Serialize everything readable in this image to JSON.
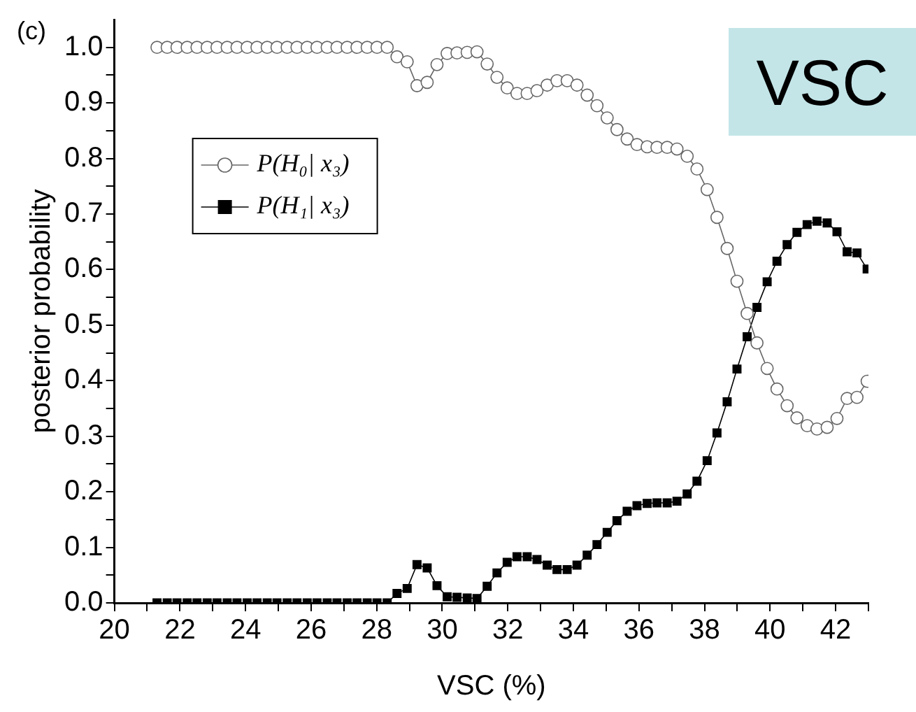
{
  "chart_data": {
    "type": "line",
    "xlabel": "VSC (%)",
    "ylabel": "posterior probability",
    "annotations": [
      "(c)",
      "VSC"
    ],
    "x": [
      21.3,
      21.61,
      21.91,
      22.22,
      22.52,
      22.83,
      23.13,
      23.44,
      23.74,
      24.05,
      24.35,
      24.66,
      24.96,
      25.27,
      25.57,
      25.88,
      26.18,
      26.49,
      26.79,
      27.1,
      27.4,
      27.71,
      28.01,
      28.32,
      28.62,
      28.93,
      29.23,
      29.54,
      29.84,
      30.15,
      30.45,
      30.76,
      31.06,
      31.37,
      31.67,
      31.98,
      32.28,
      32.59,
      32.89,
      33.2,
      33.5,
      33.81,
      34.11,
      34.42,
      34.72,
      35.03,
      35.33,
      35.64,
      35.94,
      36.25,
      36.55,
      36.86,
      37.16,
      37.47,
      37.77,
      38.08,
      38.38,
      38.69,
      38.99,
      39.3,
      39.6,
      39.91,
      40.21,
      40.52,
      40.82,
      41.13,
      41.43,
      41.74,
      42.04,
      42.35,
      42.65,
      42.96
    ],
    "series": [
      {
        "name": "P(H₀| x₃)",
        "color": "#666666",
        "marker": "circle",
        "values": [
          1,
          1,
          1,
          1,
          1,
          1,
          1,
          1,
          1,
          1,
          1,
          1,
          1,
          1,
          1,
          1,
          1,
          1,
          1,
          1,
          1,
          1,
          1,
          1,
          0.983,
          0.974,
          0.931,
          0.937,
          0.969,
          0.989,
          0.99,
          0.991,
          0.992,
          0.97,
          0.946,
          0.927,
          0.917,
          0.917,
          0.922,
          0.932,
          0.94,
          0.94,
          0.932,
          0.914,
          0.895,
          0.873,
          0.852,
          0.835,
          0.825,
          0.821,
          0.82,
          0.82,
          0.817,
          0.804,
          0.781,
          0.744,
          0.694,
          0.638,
          0.579,
          0.521,
          0.468,
          0.422,
          0.385,
          0.355,
          0.333,
          0.319,
          0.313,
          0.316,
          0.332,
          0.368,
          0.37,
          0.399
        ]
      },
      {
        "name": "P(H₁| x₃)",
        "color": "#000000",
        "marker": "square",
        "values": [
          0,
          0,
          0,
          0,
          0,
          0,
          0,
          0,
          0,
          0,
          0,
          0,
          0,
          0,
          0,
          0,
          0,
          0,
          0,
          0,
          0,
          0,
          0,
          0,
          0.017,
          0.026,
          0.069,
          0.063,
          0.031,
          0.011,
          0.01,
          0.009,
          0.008,
          0.03,
          0.054,
          0.073,
          0.083,
          0.083,
          0.078,
          0.068,
          0.06,
          0.06,
          0.068,
          0.086,
          0.105,
          0.127,
          0.148,
          0.165,
          0.175,
          0.179,
          0.18,
          0.18,
          0.183,
          0.196,
          0.219,
          0.256,
          0.306,
          0.362,
          0.421,
          0.479,
          0.532,
          0.578,
          0.615,
          0.645,
          0.667,
          0.681,
          0.687,
          0.684,
          0.668,
          0.632,
          0.63,
          0.601
        ]
      }
    ],
    "xlim": [
      20,
      43
    ],
    "xticks": [
      20,
      {
        "value": 21,
        "label": null
      },
      22,
      {
        "value": 23,
        "label": null
      },
      24,
      {
        "value": 25,
        "label": null
      },
      26,
      {
        "value": 27,
        "label": null
      },
      28,
      {
        "value": 29,
        "label": null
      },
      30,
      {
        "value": 31,
        "label": null
      },
      32,
      {
        "value": 33,
        "label": null
      },
      34,
      {
        "value": 35,
        "label": null
      },
      36,
      {
        "value": 37,
        "label": null
      },
      38,
      {
        "value": 39,
        "label": null
      },
      40,
      {
        "value": 41,
        "label": null
      },
      42,
      {
        "value": 43,
        "label": null
      }
    ],
    "ylim": [
      0,
      1.05
    ],
    "yticks": [
      {
        "value": 0,
        "label": "0.0"
      },
      {
        "value": 0.05,
        "label": null
      },
      {
        "value": 0.1,
        "label": "0.1"
      },
      {
        "value": 0.15,
        "label": null
      },
      {
        "value": 0.2,
        "label": "0.2"
      },
      {
        "value": 0.25,
        "label": null
      },
      {
        "value": 0.3,
        "label": "0.3"
      },
      {
        "value": 0.35,
        "label": null
      },
      {
        "value": 0.4,
        "label": "0.4"
      },
      {
        "value": 0.45,
        "label": null
      },
      {
        "value": 0.5,
        "label": "0.5"
      },
      {
        "value": 0.55,
        "label": null
      },
      {
        "value": 0.6,
        "label": "0.6"
      },
      {
        "value": 0.65,
        "label": null
      },
      {
        "value": 0.7,
        "label": "0.7"
      },
      {
        "value": 0.75,
        "label": null
      },
      {
        "value": 0.8,
        "label": "0.8"
      },
      {
        "value": 0.85,
        "label": null
      },
      {
        "value": 0.9,
        "label": "0.9"
      },
      {
        "value": 0.95,
        "label": null
      },
      {
        "value": 1,
        "label": "1.0"
      }
    ],
    "legend": "top left",
    "line_style": "solid"
  }
}
